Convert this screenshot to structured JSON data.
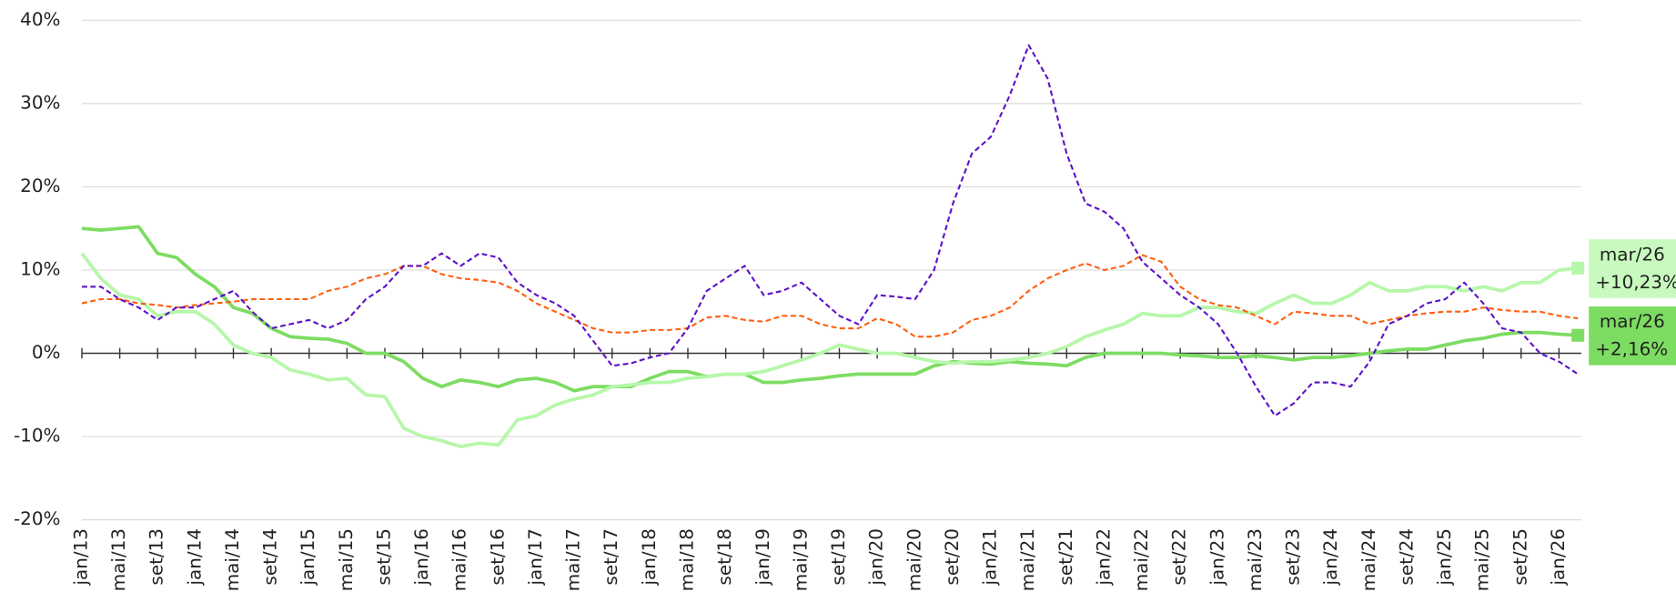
{
  "chart_data": {
    "type": "line",
    "categories": [
      "jan/13",
      null,
      "mai/13",
      null,
      "set/13",
      null,
      "jan/14",
      null,
      "mai/14",
      null,
      "set/14",
      null,
      "jan/15",
      null,
      "mai/15",
      null,
      "set/15",
      null,
      "jan/16",
      null,
      "mai/16",
      null,
      "set/16",
      null,
      "jan/17",
      null,
      "mai/17",
      null,
      "set/17",
      null,
      "jan/18",
      null,
      "mai/18",
      null,
      "set/18",
      null,
      "jan/19",
      null,
      "mai/19",
      null,
      "set/19",
      null,
      "jan/20",
      null,
      "mai/20",
      null,
      "set/20",
      null,
      "jan/21",
      null,
      "mai/21",
      null,
      "set/21",
      null,
      "jan/22",
      null,
      "mai/22",
      null,
      "set/22",
      null,
      "jan/23",
      null,
      "mai/23",
      null,
      "set/23",
      null,
      "jan/24",
      null,
      "mai/24",
      null,
      "set/24",
      null,
      "jan/25",
      null,
      "mai/25",
      null,
      "set/25",
      null,
      "jan/26",
      "mar/26"
    ],
    "series": [
      {
        "color": "#7ddc62",
        "dash": false,
        "end_label": "+2,16%",
        "label_bg": "#7ddc62",
        "values": [
          15,
          14.8,
          15,
          15.2,
          12,
          11.5,
          9.5,
          8,
          5.5,
          4.8,
          3,
          2,
          1.8,
          1.7,
          1.2,
          0,
          0,
          -1,
          -3,
          -4,
          -3.2,
          -3.5,
          -4,
          -3.2,
          -3,
          -3.5,
          -4.5,
          -4,
          -4,
          -4,
          -3,
          -2.2,
          -2.2,
          -2.8,
          -2.5,
          -2.5,
          -3.5,
          -3.5,
          -3.2,
          -3,
          -2.7,
          -2.5,
          -2.5,
          -2.5,
          -2.5,
          -1.5,
          -1,
          -1.2,
          -1.3,
          -1,
          -1.2,
          -1.3,
          -1.5,
          -0.5,
          0,
          0,
          0,
          0,
          -0.2,
          -0.3,
          -0.5,
          -0.5,
          -0.3,
          -0.5,
          -0.8,
          -0.5,
          -0.5,
          -0.3,
          0,
          0.3,
          0.5,
          0.5,
          1,
          1.5,
          1.8,
          2.3,
          2.5,
          2.5,
          2.3,
          2.16
        ]
      },
      {
        "color": "#b6f7aa",
        "dash": false,
        "end_label": "+10,23%",
        "label_bg": "#c8fabf",
        "values": [
          12,
          9,
          7,
          6.5,
          4.5,
          5,
          5,
          3.5,
          1,
          0,
          -0.5,
          -2,
          -2.5,
          -3.2,
          -3,
          -5,
          -5.2,
          -9,
          -10,
          -10.5,
          -11.2,
          -10.8,
          -11,
          -8,
          -7.5,
          -6.2,
          -5.5,
          -5,
          -4,
          -3.8,
          -3.5,
          -3.5,
          -3,
          -2.8,
          -2.5,
          -2.5,
          -2.2,
          -1.5,
          -0.8,
          0,
          1,
          0.5,
          0,
          0,
          -0.5,
          -1,
          -1.2,
          -1,
          -1,
          -0.8,
          -0.5,
          0,
          0.8,
          2,
          2.8,
          3.5,
          4.8,
          4.5,
          4.5,
          5.5,
          5.5,
          5,
          4.8,
          6,
          7,
          6,
          6,
          7,
          8.5,
          7.5,
          7.5,
          8,
          8,
          7.5,
          8,
          7.5,
          8.5,
          8.5,
          10,
          10.23
        ]
      },
      {
        "color": "#ff5f0f",
        "dash": true,
        "values": [
          6,
          6.5,
          6.5,
          6,
          5.8,
          5.5,
          5.8,
          6,
          6.2,
          6.5,
          6.5,
          6.5,
          6.5,
          7.5,
          8,
          9,
          9.5,
          10.5,
          10.5,
          9.5,
          9,
          8.8,
          8.5,
          7.5,
          6,
          5,
          4,
          3,
          2.5,
          2.5,
          2.8,
          2.8,
          3,
          4.3,
          4.5,
          4,
          3.8,
          4.5,
          4.5,
          3.5,
          3,
          3,
          4.2,
          3.5,
          2,
          2,
          2.5,
          4,
          4.5,
          5.5,
          7.5,
          9,
          10,
          10.8,
          10,
          10.5,
          11.8,
          11,
          8,
          6.5,
          5.8,
          5.5,
          4.5,
          3.5,
          5,
          4.8,
          4.5,
          4.5,
          3.5,
          4,
          4.5,
          4.8,
          5,
          5,
          5.5,
          5.2,
          5,
          5,
          4.5,
          4.2
        ]
      },
      {
        "color": "#5b12c9",
        "dash": true,
        "values": [
          8,
          8,
          6.5,
          5.5,
          4,
          5.5,
          5.5,
          6.5,
          7.5,
          5,
          3,
          3.5,
          4,
          3,
          4,
          6.5,
          8,
          10.5,
          10.5,
          12,
          10.5,
          12,
          11.5,
          8.5,
          7,
          6,
          4.5,
          1.5,
          -1.5,
          -1.2,
          -0.5,
          0,
          3,
          7.5,
          9,
          10.5,
          7,
          7.5,
          8.5,
          6.5,
          4.5,
          3.5,
          7,
          6.8,
          6.5,
          10,
          18,
          24,
          26,
          31,
          37,
          33,
          24,
          18,
          17,
          15,
          11,
          9,
          7,
          5.5,
          3.5,
          0,
          -4,
          -7.5,
          -6,
          -3.5,
          -3.5,
          -4,
          -1,
          3.5,
          4.5,
          6,
          6.5,
          8.5,
          6,
          3,
          2.5,
          0,
          -1,
          -2.5
        ]
      }
    ],
    "ylim": [
      -20,
      40
    ],
    "yticks": [
      {
        "value": -20,
        "label": "-20%"
      },
      {
        "value": -10,
        "label": "-10%"
      },
      {
        "value": 0,
        "label": "0%"
      },
      {
        "value": 10,
        "label": "10%"
      },
      {
        "value": 20,
        "label": "20%"
      },
      {
        "value": 30,
        "label": "30%"
      },
      {
        "value": 40,
        "label": "40%"
      }
    ],
    "grid": true
  }
}
